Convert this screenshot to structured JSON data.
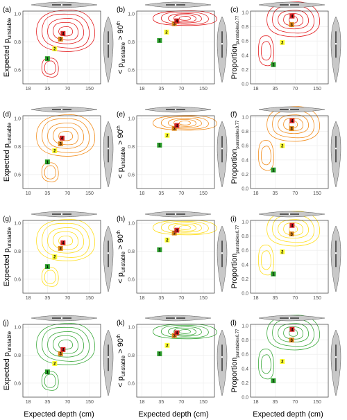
{
  "figure": {
    "xlabel": "Expected depth (cm)",
    "xticks": [
      "18",
      "35",
      "70",
      "150"
    ],
    "yticks": [
      "0.6",
      "0.8",
      "1.0"
    ],
    "yticks_c": [
      "0.0",
      "0.2",
      "0.4",
      "0.6",
      "0.8",
      "1.0"
    ],
    "ylabel_a": "Expected p",
    "ylabel_a_sub": "unstable",
    "ylabel_b_pre": "< p",
    "ylabel_b_sub": "unstable",
    "ylabel_b_post": " > 90",
    "ylabel_b_sup": "th",
    "ylabel_c": "Proportion",
    "ylabel_c_sub": "punstable≥0.77"
  },
  "colors": {
    "row_colors": [
      "#e31a1c",
      "#f28c1a",
      "#ffde1a",
      "#39a839"
    ],
    "marker_colors": [
      "#2ca02c",
      "#ffff33",
      "#e08a1e",
      "#d62728"
    ],
    "violin_fill": "#c8c8c8"
  },
  "chart_data": [
    {
      "panel": "(a)",
      "type": "scatter",
      "color": "red",
      "points": [
        {
          "label": "1",
          "x": 35,
          "y": 0.68
        },
        {
          "label": "2",
          "x": 45,
          "y": 0.75
        },
        {
          "label": "3",
          "x": 55,
          "y": 0.82
        },
        {
          "label": "4",
          "x": 60,
          "y": 0.86
        }
      ]
    },
    {
      "panel": "(b)",
      "type": "scatter",
      "color": "red",
      "points": [
        {
          "label": "1",
          "x": 33,
          "y": 0.81
        },
        {
          "label": "2",
          "x": 42,
          "y": 0.87
        },
        {
          "label": "3",
          "x": 55,
          "y": 0.93
        },
        {
          "label": "4",
          "x": 60,
          "y": 0.95
        }
      ]
    },
    {
      "panel": "(c)",
      "type": "scatter",
      "color": "red",
      "points": [
        {
          "label": "1",
          "x": 33,
          "y": 0.27
        },
        {
          "label": "2",
          "x": 45,
          "y": 0.58
        },
        {
          "label": "3",
          "x": 62,
          "y": 0.83
        },
        {
          "label": "4",
          "x": 63,
          "y": 0.95
        }
      ]
    },
    {
      "panel": "(d)",
      "type": "scatter",
      "color": "orange",
      "points": [
        {
          "label": "1",
          "x": 35,
          "y": 0.69
        },
        {
          "label": "2",
          "x": 45,
          "y": 0.77
        },
        {
          "label": "3",
          "x": 55,
          "y": 0.82
        },
        {
          "label": "4",
          "x": 58,
          "y": 0.86
        }
      ]
    },
    {
      "panel": "(e)",
      "type": "scatter",
      "color": "orange",
      "points": [
        {
          "label": "1",
          "x": 33,
          "y": 0.81
        },
        {
          "label": "2",
          "x": 43,
          "y": 0.88
        },
        {
          "label": "3",
          "x": 55,
          "y": 0.93
        },
        {
          "label": "4",
          "x": 60,
          "y": 0.95
        }
      ]
    },
    {
      "panel": "(f)",
      "type": "scatter",
      "color": "orange",
      "points": [
        {
          "label": "1",
          "x": 33,
          "y": 0.26
        },
        {
          "label": "2",
          "x": 45,
          "y": 0.6
        },
        {
          "label": "3",
          "x": 62,
          "y": 0.84
        },
        {
          "label": "4",
          "x": 63,
          "y": 0.95
        }
      ]
    },
    {
      "panel": "(g)",
      "type": "scatter",
      "color": "yellow",
      "points": [
        {
          "label": "1",
          "x": 35,
          "y": 0.69
        },
        {
          "label": "2",
          "x": 45,
          "y": 0.76
        },
        {
          "label": "3",
          "x": 55,
          "y": 0.82
        },
        {
          "label": "4",
          "x": 60,
          "y": 0.86
        }
      ]
    },
    {
      "panel": "(h)",
      "type": "scatter",
      "color": "yellow",
      "points": [
        {
          "label": "1",
          "x": 33,
          "y": 0.81
        },
        {
          "label": "2",
          "x": 43,
          "y": 0.88
        },
        {
          "label": "3",
          "x": 55,
          "y": 0.93
        },
        {
          "label": "4",
          "x": 60,
          "y": 0.95
        }
      ]
    },
    {
      "panel": "(i)",
      "type": "scatter",
      "color": "yellow",
      "points": [
        {
          "label": "1",
          "x": 33,
          "y": 0.27
        },
        {
          "label": "2",
          "x": 45,
          "y": 0.58
        },
        {
          "label": "3",
          "x": 62,
          "y": 0.83
        },
        {
          "label": "4",
          "x": 63,
          "y": 0.95
        }
      ]
    },
    {
      "panel": "(j)",
      "type": "scatter",
      "color": "green",
      "points": [
        {
          "label": "1",
          "x": 35,
          "y": 0.68
        },
        {
          "label": "2",
          "x": 45,
          "y": 0.74
        },
        {
          "label": "3",
          "x": 55,
          "y": 0.81
        },
        {
          "label": "4",
          "x": 60,
          "y": 0.84
        }
      ]
    },
    {
      "panel": "(k)",
      "type": "scatter",
      "color": "green",
      "points": [
        {
          "label": "1",
          "x": 33,
          "y": 0.81
        },
        {
          "label": "2",
          "x": 43,
          "y": 0.87
        },
        {
          "label": "3",
          "x": 55,
          "y": 0.94
        },
        {
          "label": "4",
          "x": 60,
          "y": 0.96
        }
      ]
    },
    {
      "panel": "(l)",
      "type": "scatter",
      "color": "green",
      "points": [
        {
          "label": "1",
          "x": 33,
          "y": 0.23
        },
        {
          "label": "2",
          "x": 45,
          "y": 0.5
        },
        {
          "label": "3",
          "x": 62,
          "y": 0.8
        },
        {
          "label": "4",
          "x": 63,
          "y": 0.95
        }
      ]
    }
  ]
}
